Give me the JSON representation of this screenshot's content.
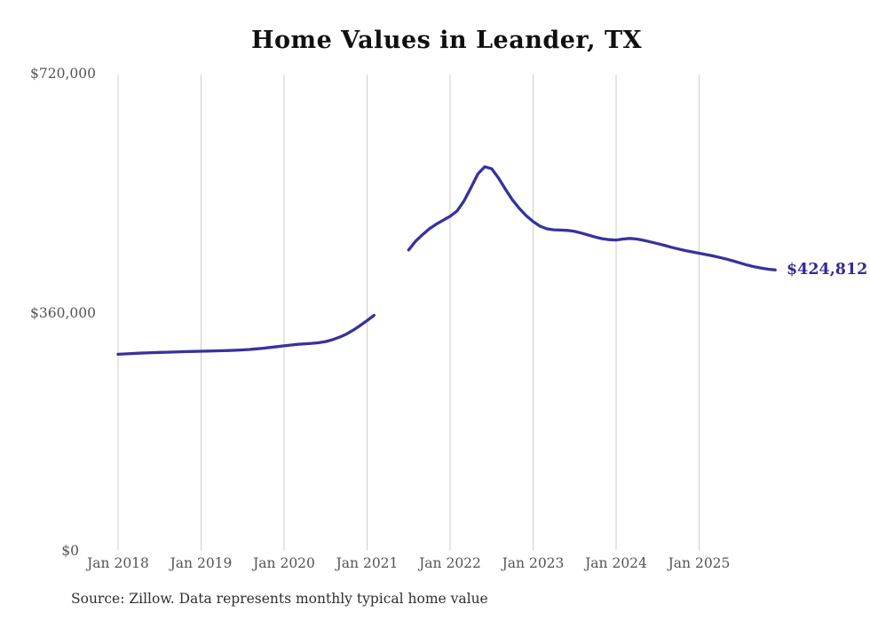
{
  "title": "Home Values in Leander, TX",
  "source_note": "Source: Zillow. Data represents monthly typical home value",
  "end_label": "$424,812",
  "colors": {
    "line": "#37329e",
    "accent_text": "#302b99",
    "grid": "#cdcdcd",
    "tick_text": "#555555",
    "title_text": "#101010",
    "source_text": "#2f2f2f"
  },
  "chart_data": {
    "type": "line",
    "title": "Home Values in Leander, TX",
    "xlabel": "",
    "ylabel": "Typical home value (USD)",
    "ylim": [
      0,
      720000
    ],
    "grid": "vertical-only",
    "legend": "none",
    "gap_note": "No data plotted for 2021-03 through 2021-06 (line break)",
    "last_value_label": "$424,812",
    "y_ticks": [
      {
        "value": 0,
        "label": "$0"
      },
      {
        "value": 360000,
        "label": "$360,000"
      },
      {
        "value": 720000,
        "label": "$720,000"
      }
    ],
    "x_ticks": [
      {
        "month_index": 0,
        "label": "Jan 2018"
      },
      {
        "month_index": 12,
        "label": "Jan 2019"
      },
      {
        "month_index": 24,
        "label": "Jan 2020"
      },
      {
        "month_index": 36,
        "label": "Jan 2021"
      },
      {
        "month_index": 48,
        "label": "Jan 2022"
      },
      {
        "month_index": 60,
        "label": "Jan 2023"
      },
      {
        "month_index": 72,
        "label": "Jan 2024"
      },
      {
        "month_index": 84,
        "label": "Jan 2025"
      }
    ],
    "x": [
      "2018-01",
      "2018-02",
      "2018-03",
      "2018-04",
      "2018-05",
      "2018-06",
      "2018-07",
      "2018-08",
      "2018-09",
      "2018-10",
      "2018-11",
      "2018-12",
      "2019-01",
      "2019-02",
      "2019-03",
      "2019-04",
      "2019-05",
      "2019-06",
      "2019-07",
      "2019-08",
      "2019-09",
      "2019-10",
      "2019-11",
      "2019-12",
      "2020-01",
      "2020-02",
      "2020-03",
      "2020-04",
      "2020-05",
      "2020-06",
      "2020-07",
      "2020-08",
      "2020-09",
      "2020-10",
      "2020-11",
      "2020-12",
      "2021-01",
      "2021-02",
      "2021-03",
      "2021-04",
      "2021-05",
      "2021-06",
      "2021-07",
      "2021-08",
      "2021-09",
      "2021-10",
      "2021-11",
      "2021-12",
      "2022-01",
      "2022-02",
      "2022-03",
      "2022-04",
      "2022-05",
      "2022-06",
      "2022-07",
      "2022-08",
      "2022-09",
      "2022-10",
      "2022-11",
      "2022-12",
      "2023-01",
      "2023-02",
      "2023-03",
      "2023-04",
      "2023-05",
      "2023-06",
      "2023-07",
      "2023-08",
      "2023-09",
      "2023-10",
      "2023-11",
      "2023-12",
      "2024-01",
      "2024-02",
      "2024-03",
      "2024-04",
      "2024-05",
      "2024-06",
      "2024-07",
      "2024-08",
      "2024-09",
      "2024-10",
      "2024-11",
      "2024-12",
      "2025-01",
      "2025-02",
      "2025-03",
      "2025-04",
      "2025-05",
      "2025-06",
      "2025-07",
      "2025-08",
      "2025-09",
      "2025-10",
      "2025-11",
      "2025-12"
    ],
    "values": [
      297000,
      297600,
      298100,
      298600,
      299000,
      299400,
      299800,
      300100,
      300400,
      300700,
      301000,
      301300,
      301600,
      301900,
      302100,
      302400,
      302700,
      303100,
      303600,
      304300,
      305200,
      306200,
      307300,
      308500,
      309800,
      311000,
      312000,
      312800,
      313500,
      314500,
      316200,
      319000,
      322800,
      327500,
      333500,
      340500,
      348000,
      356000,
      null,
      null,
      null,
      null,
      455000,
      468000,
      478000,
      487000,
      494000,
      500000,
      506000,
      514000,
      529000,
      549000,
      570000,
      581000,
      578000,
      564000,
      547000,
      531000,
      518000,
      507000,
      498000,
      491000,
      487000,
      485500,
      485000,
      484500,
      483000,
      480500,
      477500,
      474500,
      472000,
      470500,
      470000,
      471500,
      472500,
      471500,
      469500,
      467000,
      464500,
      462000,
      459000,
      456500,
      454000,
      452000,
      450000,
      448000,
      446000,
      443500,
      441000,
      438000,
      435000,
      432000,
      429500,
      427500,
      425800,
      424812
    ]
  }
}
